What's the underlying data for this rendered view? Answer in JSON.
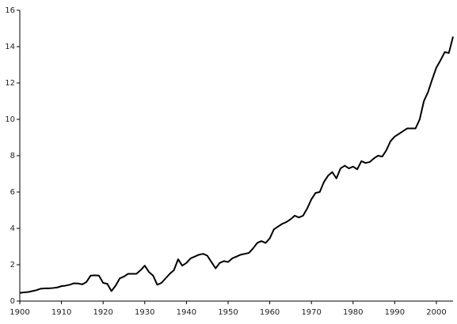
{
  "chart_data": {
    "type": "line",
    "color": "#000000",
    "x": [
      1900,
      1901,
      1902,
      1903,
      1904,
      1905,
      1906,
      1907,
      1908,
      1909,
      1910,
      1911,
      1912,
      1913,
      1914,
      1915,
      1916,
      1917,
      1918,
      1919,
      1920,
      1921,
      1922,
      1923,
      1924,
      1925,
      1926,
      1927,
      1928,
      1929,
      1930,
      1931,
      1932,
      1933,
      1934,
      1935,
      1936,
      1937,
      1938,
      1939,
      1940,
      1941,
      1942,
      1943,
      1944,
      1945,
      1946,
      1947,
      1948,
      1949,
      1950,
      1951,
      1952,
      1953,
      1954,
      1955,
      1956,
      1957,
      1958,
      1959,
      1960,
      1961,
      1962,
      1963,
      1964,
      1965,
      1966,
      1967,
      1968,
      1969,
      1970,
      1971,
      1972,
      1973,
      1974,
      1975,
      1976,
      1977,
      1978,
      1979,
      1980,
      1981,
      1982,
      1983,
      1984,
      1985,
      1986,
      1987,
      1988,
      1989,
      1990,
      1991,
      1992,
      1993,
      1994,
      1995,
      1996,
      1997,
      1998,
      1999,
      2000,
      2001,
      2002,
      2003,
      2004
    ],
    "values": [
      0.45,
      0.48,
      0.5,
      0.55,
      0.6,
      0.68,
      0.7,
      0.7,
      0.72,
      0.75,
      0.82,
      0.85,
      0.9,
      0.98,
      0.97,
      0.92,
      1.05,
      1.4,
      1.42,
      1.4,
      1.0,
      0.95,
      0.55,
      0.85,
      1.25,
      1.35,
      1.5,
      1.5,
      1.5,
      1.7,
      1.95,
      1.6,
      1.4,
      0.9,
      1.0,
      1.25,
      1.5,
      1.7,
      2.3,
      1.95,
      2.1,
      2.35,
      2.45,
      2.55,
      2.6,
      2.5,
      2.15,
      1.8,
      2.1,
      2.2,
      2.15,
      2.35,
      2.45,
      2.55,
      2.6,
      2.65,
      2.9,
      3.2,
      3.3,
      3.2,
      3.45,
      3.95,
      4.1,
      4.25,
      4.35,
      4.5,
      4.7,
      4.6,
      4.7,
      5.1,
      5.6,
      5.95,
      6.0,
      6.55,
      6.9,
      7.1,
      6.75,
      7.3,
      7.45,
      7.3,
      7.4,
      7.25,
      7.7,
      7.6,
      7.65,
      7.85,
      8.0,
      7.95,
      8.3,
      8.8,
      9.05,
      9.2,
      9.35,
      9.5,
      9.5,
      9.5,
      10.0,
      11.0,
      11.5,
      12.2,
      12.85,
      13.25,
      13.7,
      13.65,
      14.55
    ],
    "xlim": [
      1900,
      2004
    ],
    "ylim": [
      0,
      16
    ],
    "xticks": [
      1900,
      1910,
      1920,
      1930,
      1940,
      1950,
      1960,
      1970,
      1980,
      1990,
      2000
    ],
    "yticks": [
      0,
      2,
      4,
      6,
      8,
      10,
      12,
      14,
      16
    ],
    "grid": false
  }
}
